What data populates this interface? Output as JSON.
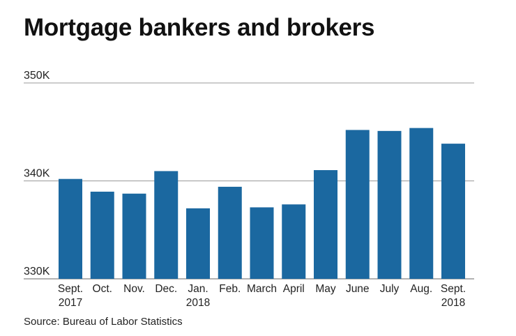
{
  "chart_data": {
    "type": "bar",
    "title": "Mortgage bankers and brokers",
    "source": "Source: Bureau of Labor Statistics",
    "categories": [
      [
        "Sept.",
        "2017"
      ],
      [
        "Oct."
      ],
      [
        "Nov."
      ],
      [
        "Dec."
      ],
      [
        "Jan.",
        "2018"
      ],
      [
        "Feb."
      ],
      [
        "March"
      ],
      [
        "April"
      ],
      [
        "May"
      ],
      [
        "June"
      ],
      [
        "July"
      ],
      [
        "Aug."
      ],
      [
        "Sept.",
        "2018"
      ]
    ],
    "values": [
      340200,
      338900,
      338700,
      341000,
      337200,
      339400,
      337300,
      337600,
      341100,
      345200,
      345100,
      345400,
      343800
    ],
    "ylim": [
      330000,
      350000
    ],
    "yticks": [
      330000,
      340000,
      350000
    ],
    "ytick_labels": [
      "330K",
      "340K",
      "350K"
    ],
    "xlabel": "",
    "ylabel": "",
    "bar_color": "#1b68a0",
    "grid": true
  }
}
